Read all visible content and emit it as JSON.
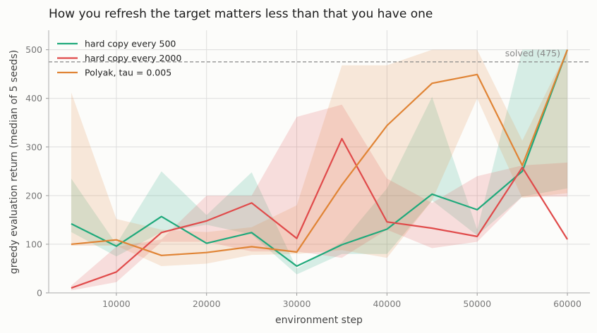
{
  "chart_data": {
    "type": "line",
    "title": "How you refresh the target matters less than that you have one",
    "xlabel": "environment step",
    "ylabel": "greedy evaluation return (median of 5 seeds)",
    "xlim": [
      2500,
      62500
    ],
    "ylim": [
      0,
      540
    ],
    "xticks": [
      10000,
      20000,
      30000,
      40000,
      50000,
      60000
    ],
    "yticks": [
      0,
      100,
      200,
      300,
      400,
      500
    ],
    "grid": true,
    "legend_position": "top-left",
    "x": [
      5000,
      10000,
      15000,
      20000,
      25000,
      30000,
      35000,
      40000,
      45000,
      50000,
      55000,
      60000
    ],
    "series": [
      {
        "name": "hard copy every 500",
        "color": "#1fa97b",
        "values": [
          142,
          96,
          157,
          102,
          124,
          55,
          99,
          131,
          203,
          171,
          250,
          500
        ],
        "band_upper": [
          235,
          100,
          250,
          160,
          248,
          50,
          104,
          215,
          403,
          130,
          500,
          500
        ],
        "band_lower": [
          125,
          75,
          125,
          140,
          120,
          38,
          80,
          80,
          190,
          118,
          198,
          215
        ]
      },
      {
        "name": "hard copy every 2000",
        "color": "#e04a4a",
        "values": [
          10,
          43,
          124,
          148,
          185,
          112,
          317,
          146,
          133,
          116,
          258,
          110
        ],
        "band_upper": [
          15,
          95,
          110,
          200,
          200,
          362,
          387,
          235,
          185,
          240,
          262,
          268
        ],
        "band_lower": [
          5,
          22,
          105,
          105,
          85,
          85,
          72,
          130,
          92,
          105,
          198,
          198
        ]
      },
      {
        "name": "Polyak, tau = 0.005",
        "color": "#e08435",
        "values": [
          100,
          109,
          77,
          83,
          95,
          84,
          222,
          344,
          431,
          449,
          262,
          500
        ],
        "band_upper": [
          412,
          152,
          130,
          125,
          135,
          180,
          468,
          468,
          500,
          500,
          313,
          500
        ],
        "band_lower": [
          97,
          97,
          55,
          60,
          78,
          80,
          88,
          72,
          190,
          400,
          195,
          205
        ]
      }
    ],
    "annotations": [
      {
        "y": 475,
        "label": "solved (475)",
        "style": "dashed",
        "color": "#888888"
      }
    ]
  }
}
